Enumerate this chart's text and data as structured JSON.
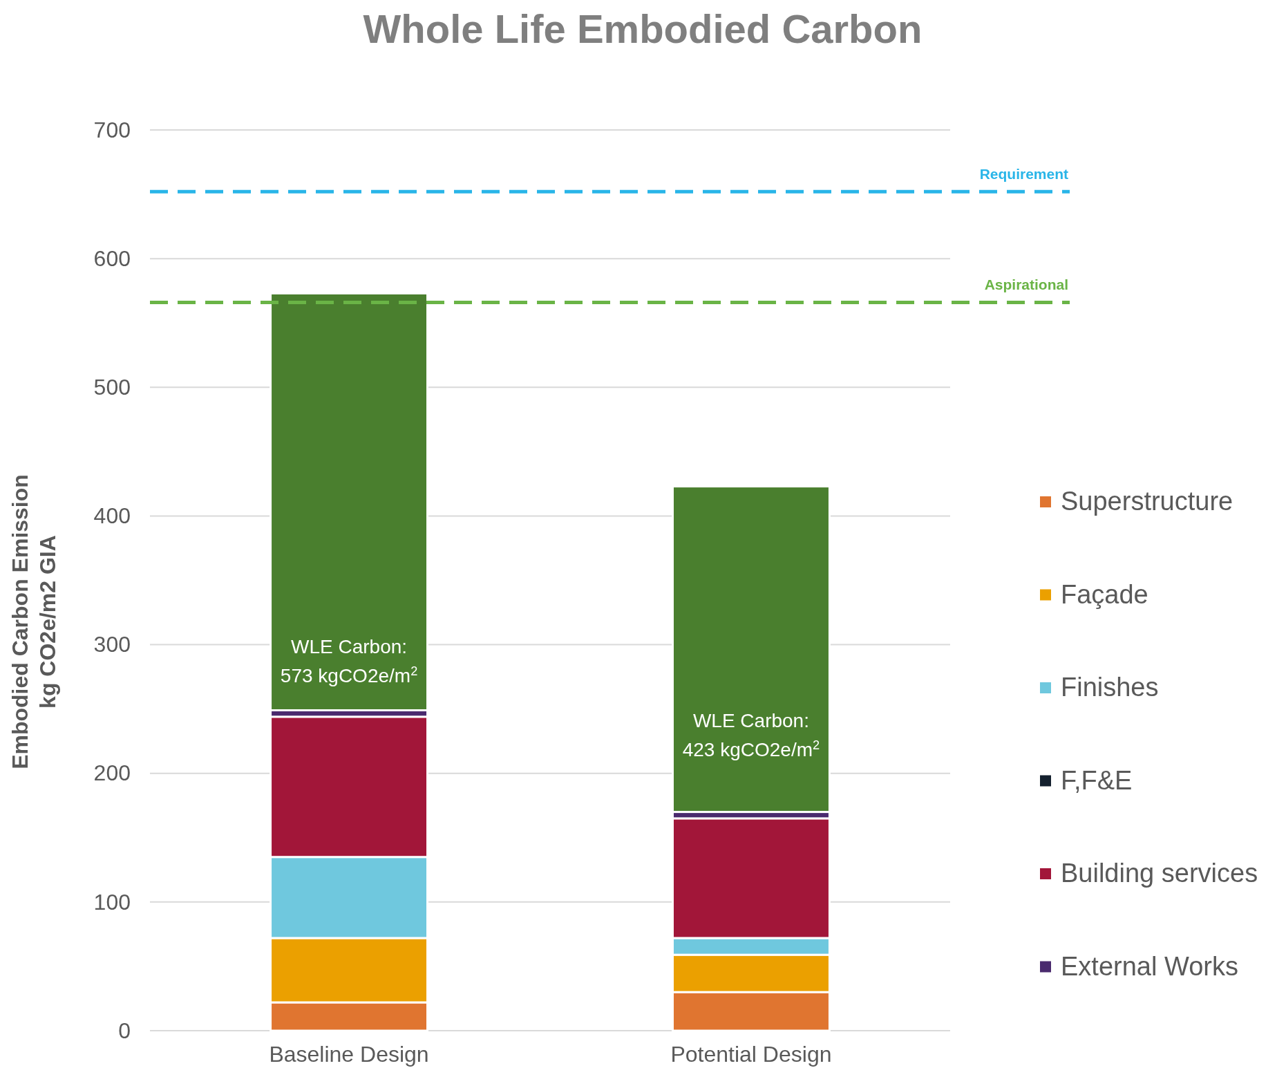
{
  "chart_data": {
    "type": "bar",
    "title": "Whole Life Embodied Carbon",
    "ylabel": "Embodied Carbon Emission\nkg CO2e/m2 GIA",
    "categories": [
      "Baseline Design",
      "Potential Design"
    ],
    "stacked": true,
    "series": [
      {
        "name": "Superstructure",
        "color": "#e07530",
        "values": [
          22,
          30
        ]
      },
      {
        "name": "Façade",
        "color": "#eba000",
        "values": [
          50,
          29
        ]
      },
      {
        "name": "Finishes",
        "color": "#6fc8de",
        "values": [
          63,
          13
        ]
      },
      {
        "name": "F,F&E",
        "color": "#14202e",
        "values": [
          0,
          0
        ]
      },
      {
        "name": "Building services",
        "color": "#a21639",
        "values": [
          109,
          93
        ]
      },
      {
        "name": "External Works",
        "color": "#4a2a6e",
        "values": [
          5,
          5
        ]
      },
      {
        "color": "#4a7f2e",
        "values": [
          324,
          253
        ]
      }
    ],
    "ylim": [
      0,
      700
    ],
    "yticks": [
      0,
      100,
      200,
      300,
      400,
      500,
      600,
      700
    ],
    "grid": "y",
    "legend": "right",
    "ref_lines": [
      {
        "axis": "y",
        "value": 652,
        "label": "Requirement",
        "color": "#29b5e8",
        "line_style": "dashed"
      },
      {
        "axis": "y",
        "value": 566,
        "label": "Aspirational",
        "color": "#6ab446",
        "line_style": "dashed"
      }
    ],
    "annotations": [
      "WLE Carbon:\n573 kgCO2e/m$^{2}$",
      "WLE Carbon:\n423 kgCO2e/m$^{2}$"
    ]
  }
}
